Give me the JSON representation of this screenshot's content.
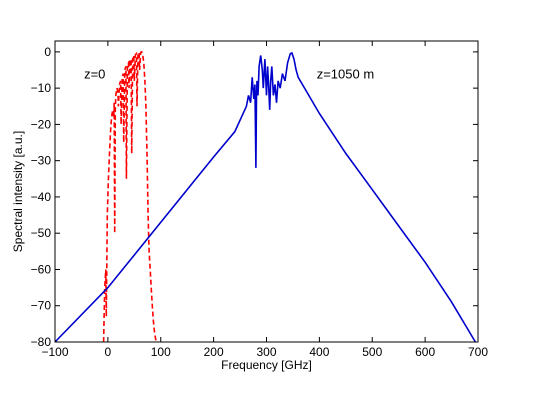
{
  "chart_data": {
    "type": "line",
    "xlabel": "Frequency [GHz]",
    "ylabel": "Spectral intensity [a.u.]",
    "xlim": [
      -100,
      700
    ],
    "ylim": [
      -80,
      3
    ],
    "xticks": [
      -100,
      0,
      100,
      200,
      300,
      400,
      500,
      600,
      700
    ],
    "xtick_labels": [
      "−100",
      "0",
      "100",
      "200",
      "300",
      "400",
      "500",
      "600",
      "700"
    ],
    "yticks": [
      0,
      -10,
      -20,
      -30,
      -40,
      -50,
      -60,
      -70,
      -80
    ],
    "ytick_labels": [
      "0",
      "−10",
      "−20",
      "−30",
      "−40",
      "−50",
      "−60",
      "−70",
      "−80"
    ],
    "grid": false,
    "annotations": [
      {
        "text": "z=0",
        "x": -45,
        "y": -6
      },
      {
        "text": "z=1050 m",
        "x": 395,
        "y": -6
      }
    ],
    "series": [
      {
        "color": "#ff0000",
        "style": "dashed",
        "x": [
          -8,
          -6,
          -4,
          -3,
          -1,
          1,
          3,
          5,
          7,
          9,
          11,
          12,
          13,
          14,
          15,
          17,
          19,
          20,
          22,
          24,
          25,
          27,
          29,
          30,
          32,
          34,
          35,
          37,
          39,
          40,
          42,
          44,
          45,
          47,
          49,
          50,
          52,
          54,
          55,
          57,
          59,
          60,
          62,
          64,
          66,
          68,
          70,
          72,
          74,
          76,
          78,
          80,
          82,
          84,
          86,
          88,
          90,
          92
        ],
        "y": [
          -80,
          -65,
          -60,
          -73,
          -45,
          -35,
          -28,
          -22,
          -18,
          -16,
          -18,
          -14,
          -50,
          -16,
          -12,
          -10,
          -11,
          -15,
          -9,
          -8,
          -20,
          -7,
          -6,
          -25,
          -5,
          -4,
          -35,
          -3.5,
          -3,
          -10,
          -2.5,
          -2,
          -28,
          -1.5,
          -1,
          -8,
          -0.8,
          -0.5,
          -15,
          -0.3,
          -0.2,
          -5,
          -0.1,
          0,
          -1,
          -3,
          -8,
          -15,
          -28,
          -45,
          -55,
          -60,
          -65,
          -70,
          -74,
          -77,
          -79,
          -80
        ]
      },
      {
        "color": "#0000cc",
        "style": "solid",
        "x": [
          -100,
          0,
          100,
          200,
          240,
          262,
          266,
          270,
          273,
          276,
          278,
          279,
          280,
          281,
          282,
          284,
          286,
          289,
          292,
          294,
          297,
          300,
          302,
          304,
          306,
          308,
          310,
          313,
          316,
          319,
          322,
          326,
          330,
          335,
          340,
          345,
          348,
          352,
          356,
          360,
          380,
          400,
          450,
          500,
          550,
          600,
          650,
          695
        ],
        "y": [
          -80,
          -65,
          -47,
          -29,
          -22,
          -15,
          -12,
          -14,
          -7,
          -13,
          -9,
          -20,
          -32,
          -12,
          -8,
          -12,
          -4,
          -1,
          -5,
          -10,
          -2,
          -12,
          -4,
          -9,
          -16,
          -8,
          -4,
          -12,
          -9,
          -14,
          -8,
          -10,
          -6,
          -8,
          -3,
          -0.5,
          -0.3,
          -2,
          -5,
          -7,
          -12,
          -17,
          -28,
          -38,
          -48,
          -58,
          -69,
          -80
        ]
      }
    ]
  }
}
